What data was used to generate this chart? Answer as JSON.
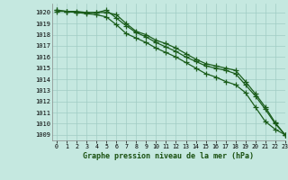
{
  "xlabel": "Graphe pression niveau de la mer (hPa)",
  "xlim": [
    -0.5,
    23
  ],
  "ylim": [
    1008.5,
    1020.8
  ],
  "yticks": [
    1009,
    1010,
    1011,
    1012,
    1013,
    1014,
    1015,
    1016,
    1017,
    1018,
    1019,
    1020
  ],
  "xticks": [
    0,
    1,
    2,
    3,
    4,
    5,
    6,
    7,
    8,
    9,
    10,
    11,
    12,
    13,
    14,
    15,
    16,
    17,
    18,
    19,
    20,
    21,
    22,
    23
  ],
  "background_color": "#c5e8e0",
  "grid_color": "#a0ccc4",
  "line_color": "#1a5c1a",
  "series": [
    [
      1020.2,
      1020.1,
      1020.1,
      1020.0,
      1020.0,
      1020.0,
      1019.8,
      1019.0,
      1018.3,
      1018.0,
      1017.5,
      1017.2,
      1016.8,
      1016.3,
      1015.8,
      1015.4,
      1015.2,
      1015.0,
      1014.8,
      1013.8,
      1012.7,
      1011.5,
      1010.1,
      1009.0
    ],
    [
      1020.1,
      1020.1,
      1020.0,
      1020.0,
      1020.0,
      1020.2,
      1019.5,
      1018.8,
      1018.2,
      1017.8,
      1017.3,
      1016.9,
      1016.5,
      1016.0,
      1015.6,
      1015.2,
      1015.0,
      1014.8,
      1014.5,
      1013.5,
      1012.5,
      1011.3,
      1010.0,
      1009.0
    ],
    [
      1020.2,
      1020.1,
      1020.0,
      1019.9,
      1019.8,
      1019.6,
      1018.9,
      1018.1,
      1017.7,
      1017.3,
      1016.8,
      1016.4,
      1016.0,
      1015.5,
      1015.0,
      1014.5,
      1014.2,
      1013.8,
      1013.5,
      1012.8,
      1011.5,
      1010.2,
      1009.5,
      1009.0
    ]
  ]
}
